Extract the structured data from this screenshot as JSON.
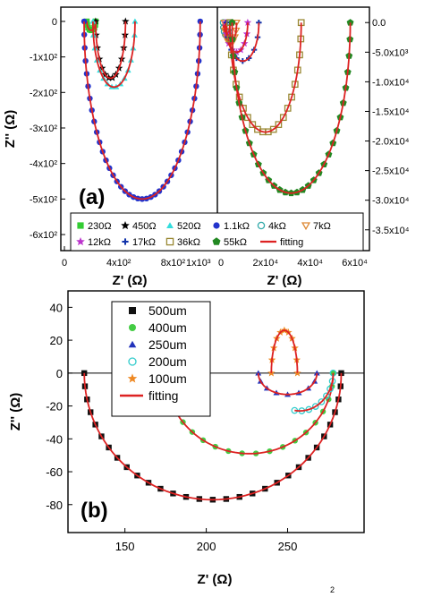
{
  "chart_data": [
    {
      "panel": "(a) left",
      "type": "scatter",
      "ylabel": "Z'' (Ω)",
      "xlabel": "",
      "xlim": [
        0,
        1100
      ],
      "ylim": [
        -620,
        30
      ],
      "xticks": [
        {
          "v": 0,
          "label": "0"
        },
        {
          "v": 400,
          "label": "4x10²"
        },
        {
          "v": 800,
          "label": "8x10²"
        }
      ],
      "yticks": [
        {
          "v": 0,
          "label": "0"
        },
        {
          "v": -100,
          "label": "-1x10²"
        },
        {
          "v": -200,
          "label": "-2x10²"
        },
        {
          "v": -300,
          "label": "-3x10²"
        },
        {
          "v": -400,
          "label": "-4x10²"
        },
        {
          "v": -500,
          "label": "-5x10²"
        },
        {
          "v": -600,
          "label": "-6x10²"
        }
      ],
      "series": [
        {
          "name": "230Ω",
          "marker": "square",
          "color": "#33cc33",
          "x0": 165,
          "x1": 230,
          "depth": -25
        },
        {
          "name": "450Ω",
          "marker": "star",
          "color": "#000000",
          "x0": 230,
          "x1": 450,
          "depth": -160
        },
        {
          "name": "520Ω",
          "marker": "triangle",
          "color": "#33dddd",
          "x0": 210,
          "x1": 520,
          "depth": -185
        },
        {
          "name": "1.1kΩ",
          "marker": "circle",
          "color": "#2233cc",
          "x0": 145,
          "x1": 1000,
          "depth": -500
        }
      ]
    },
    {
      "panel": "(a) right",
      "type": "scatter",
      "ylabel": "",
      "xlabel": "",
      "xlim": [
        0,
        65000
      ],
      "ylim": [
        -37000,
        2000
      ],
      "xticks": [
        {
          "v": 0,
          "label": "0"
        },
        {
          "v": 20000,
          "label": "2x10⁴"
        },
        {
          "v": 40000,
          "label": "4x10⁴"
        },
        {
          "v": 60000,
          "label": "6x10⁴"
        }
      ],
      "yticks": [
        {
          "v": 0,
          "label": "0.0"
        },
        {
          "v": -5000,
          "label": "-5.0x10³"
        },
        {
          "v": -10000,
          "label": "-1.0x10⁴"
        },
        {
          "v": -15000,
          "label": "-1.5x10⁴"
        },
        {
          "v": -20000,
          "label": "-2.0x10⁴"
        },
        {
          "v": -25000,
          "label": "-2.5x10⁴"
        },
        {
          "v": -30000,
          "label": "-3.0x10⁴"
        },
        {
          "v": -35000,
          "label": "-3.5x10⁴"
        }
      ],
      "series": [
        {
          "name": "4kΩ",
          "marker": "circle-open",
          "color": "#33aaaa",
          "x0": 1000,
          "x1": 4000,
          "depth": -2200
        },
        {
          "name": "7kΩ",
          "marker": "triangle-down-open",
          "color": "#dd8833",
          "x0": 1500,
          "x1": 7000,
          "depth": -3500
        },
        {
          "name": "12kΩ",
          "marker": "star",
          "color": "#bb33cc",
          "x0": 2000,
          "x1": 12000,
          "depth": -5000
        },
        {
          "name": "17kΩ",
          "marker": "plus",
          "color": "#1133aa",
          "x0": 2500,
          "x1": 17000,
          "depth": -6500
        },
        {
          "name": "36kΩ",
          "marker": "square-open",
          "color": "#998833",
          "x0": 4000,
          "x1": 36000,
          "depth": -18500
        },
        {
          "name": "55kΩ",
          "marker": "pentagon",
          "color": "#228822",
          "x0": 5000,
          "x1": 58000,
          "depth": -28800
        }
      ]
    },
    {
      "panel": "(a) legend",
      "legend_order": [
        "230Ω",
        "450Ω",
        "520Ω",
        "1.1kΩ",
        "4kΩ",
        "7kΩ",
        "12kΩ",
        "17kΩ",
        "36kΩ",
        "55kΩ",
        "fitting"
      ],
      "fitting": {
        "name": "fitting",
        "color": "#dd2222"
      }
    },
    {
      "panel": "(b)",
      "type": "scatter",
      "xlabel": "Z' (Ω)",
      "ylabel": "Z'' (Ω)",
      "xlim": [
        115,
        297
      ],
      "ylim": [
        -97,
        50
      ],
      "xticks": [
        {
          "v": 150,
          "label": "150"
        },
        {
          "v": 200,
          "label": "200"
        },
        {
          "v": 250,
          "label": "250"
        }
      ],
      "yticks": [
        {
          "v": 40,
          "label": "40"
        },
        {
          "v": 20,
          "label": "20"
        },
        {
          "v": 0,
          "label": "0"
        },
        {
          "v": -20,
          "label": "-20"
        },
        {
          "v": -40,
          "label": "-40"
        },
        {
          "v": -60,
          "label": "-60"
        },
        {
          "v": -80,
          "label": "-80"
        }
      ],
      "fitting": {
        "name": "fitting",
        "color": "#dd2222"
      },
      "series": [
        {
          "name": "500um",
          "marker": "square",
          "color": "#111111",
          "x0": 125,
          "x1": 283,
          "depth": -77,
          "t0": 0.0,
          "t1": 1.0
        },
        {
          "name": "400um",
          "marker": "circle",
          "color": "#44cc44",
          "x0": 175,
          "x1": 278,
          "depth": -49,
          "t0": 0.05,
          "t1": 1.0
        },
        {
          "name": "250um",
          "marker": "triangle",
          "color": "#2233bb",
          "x0": 232,
          "x1": 268,
          "depth": -13,
          "t0": 0.0,
          "t1": 1.0
        },
        {
          "name": "200um",
          "marker": "circle-open",
          "color": "#33cccc",
          "x0": 237,
          "x1": 278,
          "depth": -23,
          "t0": 0.45,
          "t1": 1.0
        },
        {
          "name": "100um",
          "marker": "star",
          "color": "#ee8822",
          "x0": 240,
          "x1": 256,
          "depth": 26,
          "t0": 0.0,
          "t1": 1.0
        }
      ]
    }
  ],
  "labels": {
    "panel_a": "(a)",
    "panel_b": "(b)",
    "zreal": "Z' (Ω)",
    "zimag": "Z'' (Ω)",
    "fitting": "fitting",
    "caption_mark": "2"
  }
}
